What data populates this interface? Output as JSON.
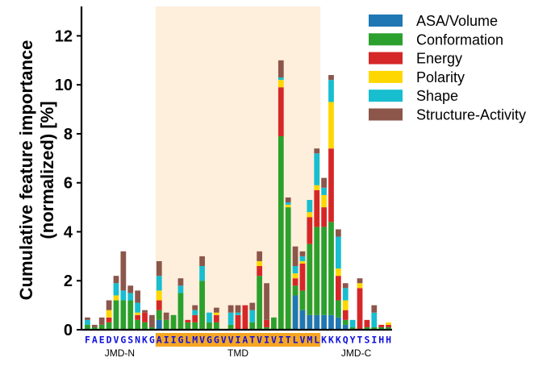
{
  "chart_data": {
    "type": "bar",
    "stacked": true,
    "ylabel": "Cumulative feature importance\n(normalized) [%]",
    "xlabel": "",
    "ylim": [
      0,
      13.2
    ],
    "yticks": [
      0,
      2,
      4,
      6,
      8,
      10,
      12
    ],
    "sequence": "FAEDVGSNKGAIIGLMVGGVVIATVIVITLVMLKKKQYTSIHH",
    "regions": [
      {
        "label": "JMD-N",
        "start": 0,
        "end": 10,
        "highlight": false
      },
      {
        "label": "TMD",
        "start": 10,
        "end": 33,
        "highlight": true
      },
      {
        "label": "JMD-C",
        "start": 33,
        "end": 43,
        "highlight": false
      }
    ],
    "region_fill": "#fdefdc",
    "tmd_label_bg": "#f5a623",
    "legend_position": "top-right",
    "series": [
      {
        "name": "ASA/Volume",
        "color": "#1f77b4",
        "values": [
          0,
          0,
          0,
          0,
          0,
          0,
          0,
          0,
          0,
          0,
          0.4,
          0,
          0,
          0,
          0,
          0,
          0,
          0,
          0,
          0,
          0,
          0,
          0,
          0,
          0,
          0,
          0,
          0,
          0,
          1.4,
          0.8,
          0.6,
          0.6,
          0.6,
          0.6,
          0.5,
          0.2,
          0,
          0,
          0,
          0,
          0,
          0
        ]
      },
      {
        "name": "Conformation",
        "color": "#2ca02c",
        "values": [
          0.2,
          0.1,
          0.2,
          0.3,
          1.2,
          1.2,
          1.2,
          0.4,
          0.3,
          0.1,
          0.4,
          0.4,
          0.6,
          1.5,
          0.3,
          0.3,
          2.0,
          0.3,
          0.3,
          0,
          0.2,
          0,
          0,
          0.3,
          2.2,
          0.1,
          0.5,
          7.9,
          5.0,
          0.4,
          0.8,
          2.9,
          3.6,
          3.6,
          3.8,
          0.7,
          0.2,
          0.1,
          0,
          0.1,
          0.1,
          0.1,
          0.1
        ]
      },
      {
        "name": "Energy",
        "color": "#d62728",
        "values": [
          0,
          0,
          0,
          0.2,
          0,
          0,
          0,
          0.2,
          0.4,
          0,
          0.4,
          0,
          0,
          0,
          0.1,
          0.3,
          0,
          0,
          0.3,
          0,
          0,
          0.6,
          1.0,
          0,
          0.4,
          0.3,
          0,
          2.0,
          0,
          0.3,
          1.1,
          1.1,
          1.5,
          0.8,
          3.0,
          1.0,
          0.4,
          0,
          1.7,
          0.3,
          0,
          0.1,
          0.1
        ]
      },
      {
        "name": "Polarity",
        "color": "#ffd700",
        "values": [
          0,
          0,
          0,
          0.3,
          0.2,
          0,
          0,
          0.1,
          0,
          0,
          0.4,
          0,
          0,
          0,
          0,
          0,
          0,
          0,
          0.1,
          0,
          0,
          0,
          0,
          0,
          0.2,
          0,
          0,
          0.3,
          0.1,
          0.2,
          0.1,
          0.2,
          0.2,
          0.5,
          1.9,
          0.3,
          0.4,
          0,
          0.2,
          0,
          0,
          0,
          0.1
        ]
      },
      {
        "name": "Shape",
        "color": "#17becf",
        "values": [
          0.2,
          0,
          0,
          0,
          0.5,
          0.4,
          0.3,
          0.4,
          0,
          0,
          0.6,
          0,
          0,
          0.3,
          0,
          0.2,
          0.6,
          0.4,
          0,
          0,
          0.5,
          0.1,
          0,
          0.5,
          0,
          0,
          0,
          0.1,
          0.1,
          0.3,
          0.2,
          0.5,
          1.3,
          0.3,
          0.9,
          1.3,
          0.5,
          0.3,
          0,
          0,
          0.6,
          0,
          0
        ]
      },
      {
        "name": "Structure-Activity",
        "color": "#8c564b",
        "values": [
          0.1,
          0.1,
          0.3,
          0.4,
          0.3,
          1.6,
          0.3,
          0.5,
          0.1,
          0.5,
          0.6,
          0.3,
          0,
          0.3,
          0,
          0.2,
          0.4,
          0,
          0.2,
          0,
          0.3,
          0.3,
          0,
          0.3,
          0.4,
          1.5,
          0,
          0.7,
          0.2,
          0.8,
          0.2,
          0,
          0.2,
          0.4,
          0.2,
          0.3,
          0.2,
          0,
          0.2,
          0,
          0.3,
          0,
          0
        ]
      }
    ]
  }
}
